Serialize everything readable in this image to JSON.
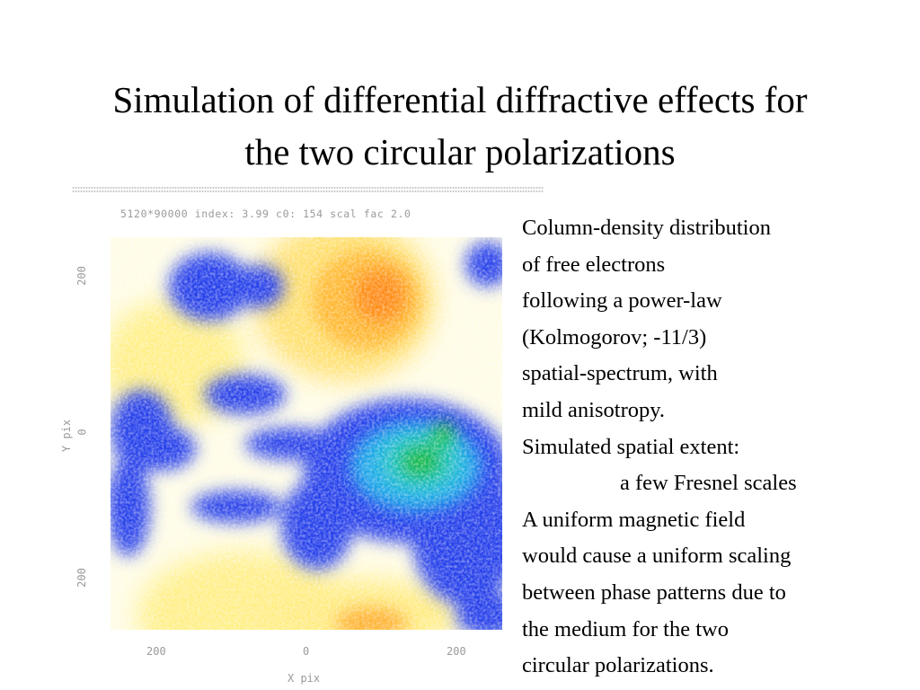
{
  "slide": {
    "title_lines": [
      "Simulation of differential diffractive effects for",
      "the two circular polarizations"
    ],
    "description_lines": [
      "Column-density distribution",
      "of free electrons",
      "following a power-law",
      "(Kolmogorov; -11/3)",
      "spatial-spectrum, with",
      "mild anisotropy.",
      "Simulated spatial extent:",
      "a few Fresnel scales",
      "A uniform magnetic field",
      "would cause a uniform scaling",
      "between phase patterns due to",
      "the medium for the two",
      "circular polarizations."
    ]
  },
  "figure": {
    "header_text": "5120*90000 index: 3.99 c0: 154 scal fac 2.0",
    "x_ticks": [
      "200",
      "0",
      "200"
    ],
    "x_label": "X pix",
    "y_ticks": [
      "200",
      "0",
      "200"
    ],
    "y_label": "Y pix",
    "colormap": [
      "#1a2fe8",
      "#3c63f0",
      "#18b0e6",
      "#22c060",
      "#fffbe0",
      "#ffef8c",
      "#ffc43a",
      "#ff7a0a"
    ]
  }
}
